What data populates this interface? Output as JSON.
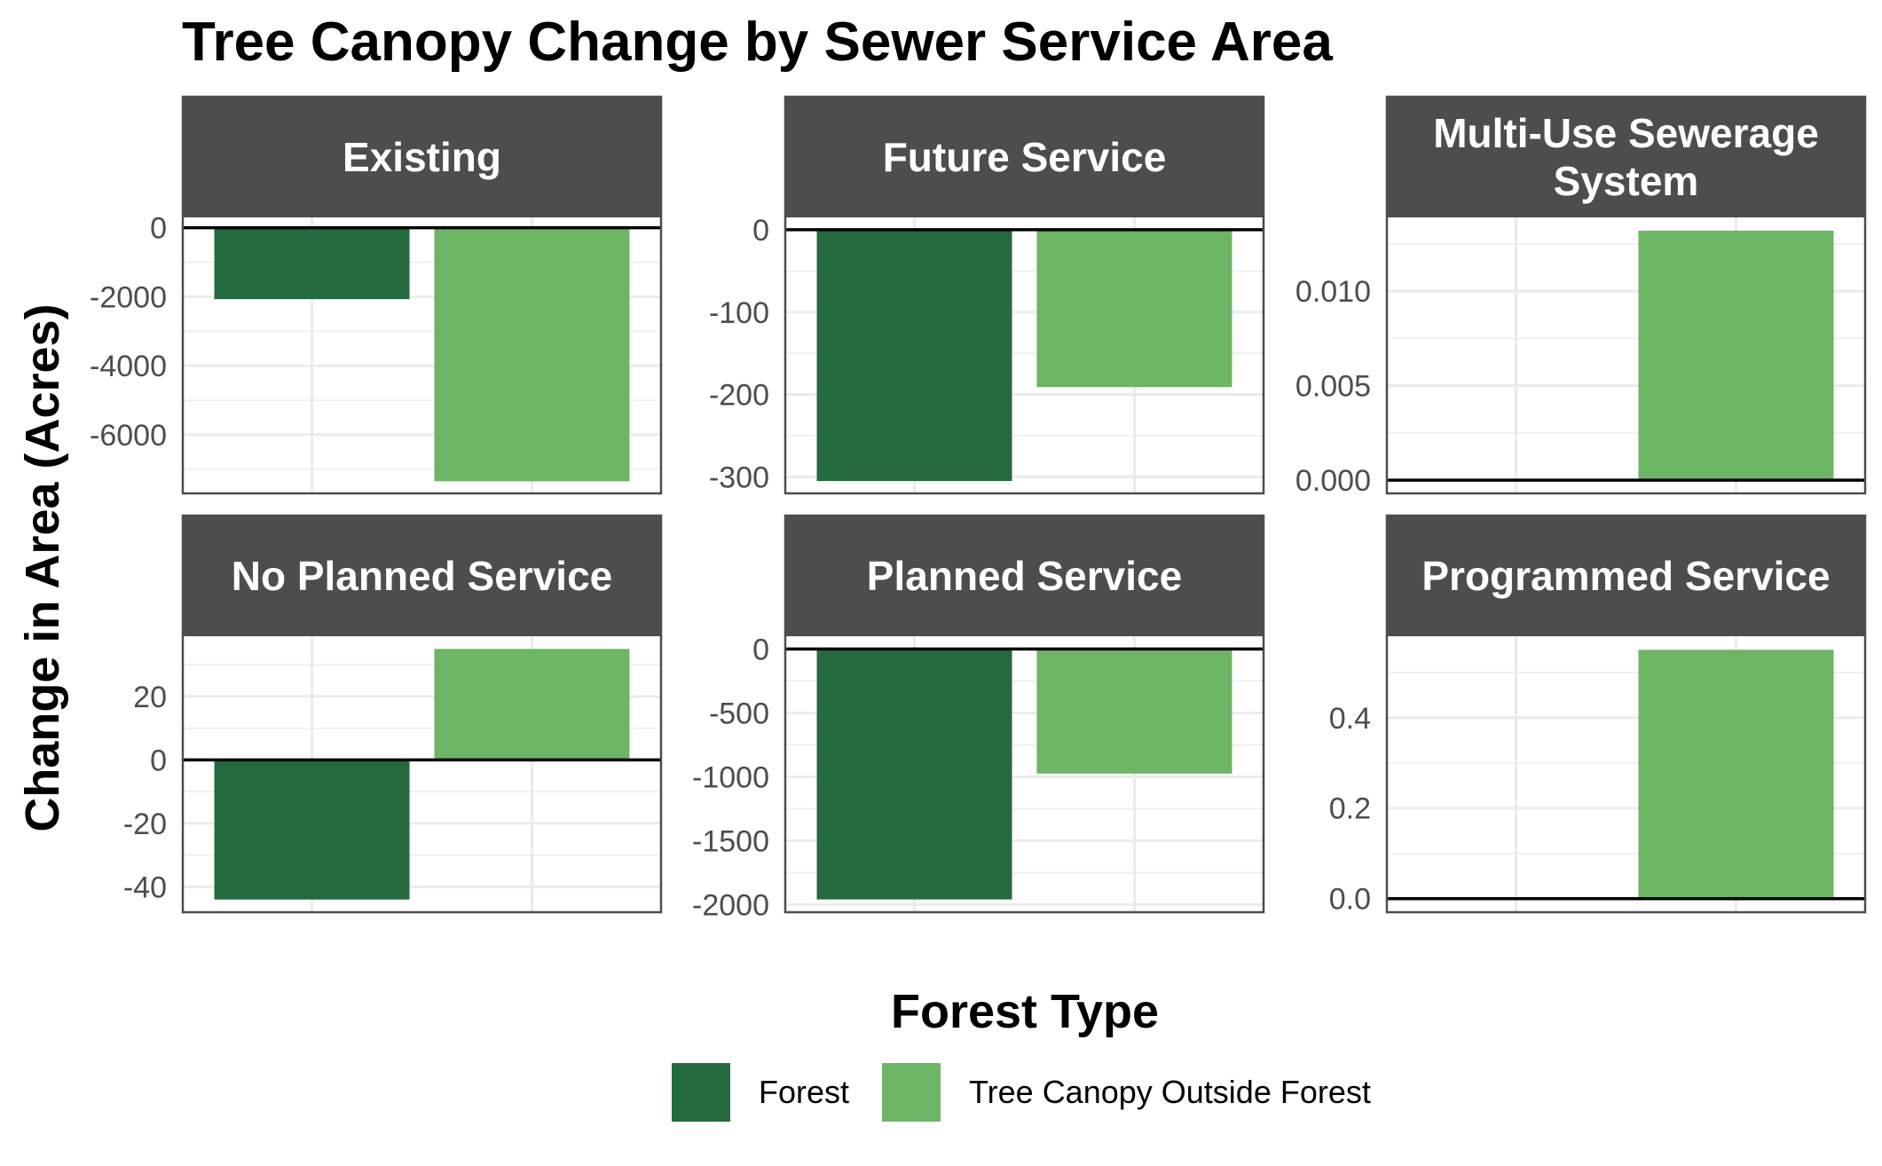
{
  "chart_data": {
    "type": "bar",
    "title": "Tree Canopy Change by Sewer Service Area",
    "ylabel": "Change in Area (Acres)",
    "xlabel": "",
    "legend": {
      "title": "Forest Type",
      "position": "bottom",
      "entries": [
        {
          "name": "Forest",
          "color": "#236B3E"
        },
        {
          "name": "Tree Canopy Outside Forest",
          "color": "#6CB564"
        }
      ]
    },
    "categories": [
      "Forest",
      "Tree Canopy Outside Forest"
    ],
    "grid": true,
    "colors": {
      "forest": "#236B3E",
      "tree_canopy": "#6CB564",
      "strip_bg": "#4D4D4D",
      "strip_text": "#FFFFFF",
      "panel_border": "#4D4D4D",
      "grid": "#EBEBEB",
      "tick_text": "#4D4D4D"
    },
    "panels": [
      {
        "strip": [
          "Existing"
        ],
        "series": [
          {
            "name": "Forest",
            "value": -2070
          },
          {
            "name": "Tree Canopy Outside Forest",
            "value": -7350
          }
        ],
        "ylim": [
          -7700,
          300
        ],
        "yticks": [
          0,
          -2000,
          -4000,
          -6000
        ],
        "ytick_labels": [
          "0",
          "-2000",
          "-4000",
          "-6000"
        ],
        "minor_ticks": [
          -1000,
          -3000,
          -5000,
          -7000
        ]
      },
      {
        "strip": [
          "Future Service"
        ],
        "series": [
          {
            "name": "Forest",
            "value": -305
          },
          {
            "name": "Tree Canopy Outside Forest",
            "value": -191
          }
        ],
        "ylim": [
          -320,
          15
        ],
        "yticks": [
          0,
          -100,
          -200,
          -300
        ],
        "ytick_labels": [
          "0",
          "-100",
          "-200",
          "-300"
        ],
        "minor_ticks": [
          -50,
          -150,
          -250
        ]
      },
      {
        "strip": [
          "Multi-Use Sewerage",
          "System"
        ],
        "series": [
          {
            "name": "Forest",
            "value": 0
          },
          {
            "name": "Tree Canopy Outside Forest",
            "value": 0.0132
          }
        ],
        "ylim": [
          -0.0007,
          0.0139
        ],
        "yticks": [
          0.0,
          0.005,
          0.01
        ],
        "ytick_labels": [
          "0.000",
          "0.005",
          "0.010"
        ],
        "minor_ticks": [
          0.0025,
          0.0075,
          0.0125
        ]
      },
      {
        "strip": [
          "No Planned Service"
        ],
        "series": [
          {
            "name": "Forest",
            "value": -44
          },
          {
            "name": "Tree Canopy Outside Forest",
            "value": 35
          }
        ],
        "ylim": [
          -48,
          39
        ],
        "yticks": [
          20,
          0,
          -20,
          -40
        ],
        "ytick_labels": [
          "20",
          "0",
          "-20",
          "-40"
        ],
        "minor_ticks": [
          30,
          10,
          -10,
          -30
        ]
      },
      {
        "strip": [
          "Planned Service"
        ],
        "series": [
          {
            "name": "Forest",
            "value": -1960
          },
          {
            "name": "Tree Canopy Outside Forest",
            "value": -975
          }
        ],
        "ylim": [
          -2060,
          100
        ],
        "yticks": [
          0,
          -500,
          -1000,
          -1500,
          -2000
        ],
        "ytick_labels": [
          "0",
          "-500",
          "-1000",
          "-1500",
          "-2000"
        ],
        "minor_ticks": [
          -250,
          -750,
          -1250,
          -1750
        ]
      },
      {
        "strip": [
          "Programmed Service"
        ],
        "series": [
          {
            "name": "Forest",
            "value": -0.001
          },
          {
            "name": "Tree Canopy Outside Forest",
            "value": 0.55
          }
        ],
        "ylim": [
          -0.03,
          0.58
        ],
        "yticks": [
          0.0,
          0.2,
          0.4
        ],
        "ytick_labels": [
          "0.0",
          "0.2",
          "0.4"
        ],
        "minor_ticks": [
          0.1,
          0.3,
          0.5
        ]
      }
    ]
  }
}
